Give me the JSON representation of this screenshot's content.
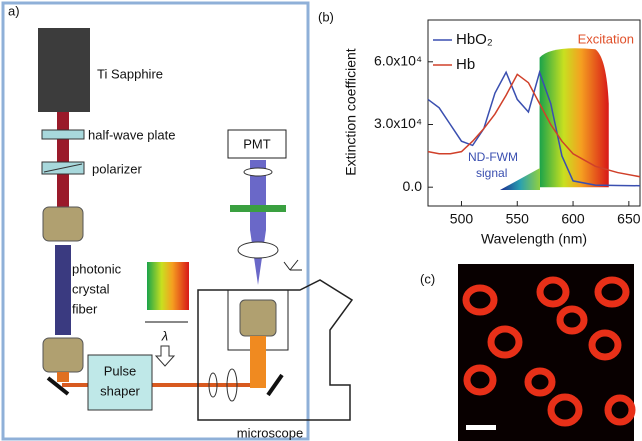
{
  "panel_a": {
    "label": "a)",
    "laser": "Ti Sapphire",
    "half_wave_plate": "half-wave plate",
    "polarizer": "polarizer",
    "fiber": [
      "photonic",
      "crystal",
      "fiber"
    ],
    "pmt": "PMT",
    "pulse_shaper": [
      "Pulse",
      "shaper"
    ],
    "lambda": "λ",
    "microscope": "microscope"
  },
  "chart_data": {
    "type": "line",
    "panel_label": "(b)",
    "x_label": "Wavelength (nm)",
    "y_label": "Extinction coefficient",
    "x": [
      470,
      480,
      490,
      500,
      510,
      520,
      530,
      540,
      550,
      560,
      570,
      580,
      590,
      600,
      620,
      640,
      660
    ],
    "series": [
      {
        "name": "HbO₂",
        "color": "#3a4fb0",
        "values": [
          42000,
          38000,
          30000,
          22000,
          20000,
          28000,
          45000,
          55000,
          42000,
          36000,
          55000,
          40000,
          15000,
          3000,
          1000,
          800,
          700
        ]
      },
      {
        "name": "Hb",
        "color": "#d0402a",
        "values": [
          17000,
          16000,
          16000,
          17000,
          22000,
          28000,
          35000,
          44000,
          54000,
          50000,
          40000,
          30000,
          22000,
          16000,
          10000,
          7000,
          5000
        ]
      }
    ],
    "xlim": [
      470,
      660
    ],
    "ylim": [
      -9000,
      80000
    ],
    "xticks": [
      500,
      550,
      600,
      650
    ],
    "yticks": [
      {
        "value": 0,
        "label": "0.0"
      },
      {
        "value": 30000,
        "label": "3.0x10⁴"
      },
      {
        "value": 60000,
        "label": "6.0x10⁴"
      }
    ],
    "annotations": {
      "excitation": "Excitation",
      "signal": [
        "ND-FWM",
        "signal"
      ]
    }
  },
  "panel_c": {
    "label": "(c)"
  }
}
